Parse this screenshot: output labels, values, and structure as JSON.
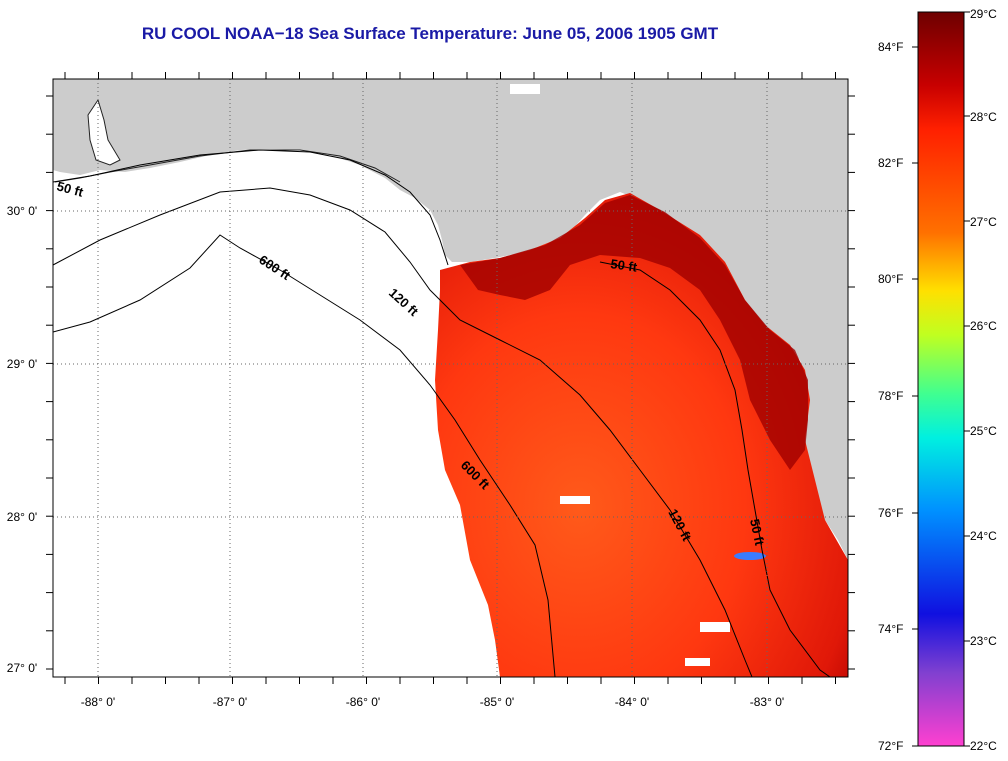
{
  "title": "RU COOL  NOAA−18  Sea Surface Temperature:  June 05, 2006 1905 GMT",
  "map": {
    "longitude_labels": [
      "-88° 0'",
      "-87° 0'",
      "-86° 0'",
      "-85° 0'",
      "-84° 0'",
      "-83° 0'"
    ],
    "latitude_labels": [
      "30° 0'",
      "29° 0'",
      "28° 0'",
      "27° 0'"
    ],
    "land_color": "#cccccc",
    "no_data_color": "#ffffff",
    "contours": [
      {
        "label": "50 ft"
      },
      {
        "label": "600 ft"
      },
      {
        "label": "120 ft"
      },
      {
        "label": "50 ft"
      },
      {
        "label": "600 ft"
      },
      {
        "label": "120 ft"
      },
      {
        "label": "50 ft"
      }
    ]
  },
  "colorbar": {
    "celsius_labels": [
      "29°C",
      "28°C",
      "27°C",
      "26°C",
      "25°C",
      "24°C",
      "23°C",
      "22°C"
    ],
    "fahrenheit_labels": [
      "84°F",
      "82°F",
      "80°F",
      "78°F",
      "76°F",
      "74°F",
      "72°F"
    ],
    "color_stops": [
      "#6e0000",
      "#c80000",
      "#ff2000",
      "#ff7000",
      "#ffe000",
      "#c0ff20",
      "#40ff90",
      "#00f0e0",
      "#0090ff",
      "#1010e0",
      "#8040d0",
      "#ff40d0"
    ]
  }
}
